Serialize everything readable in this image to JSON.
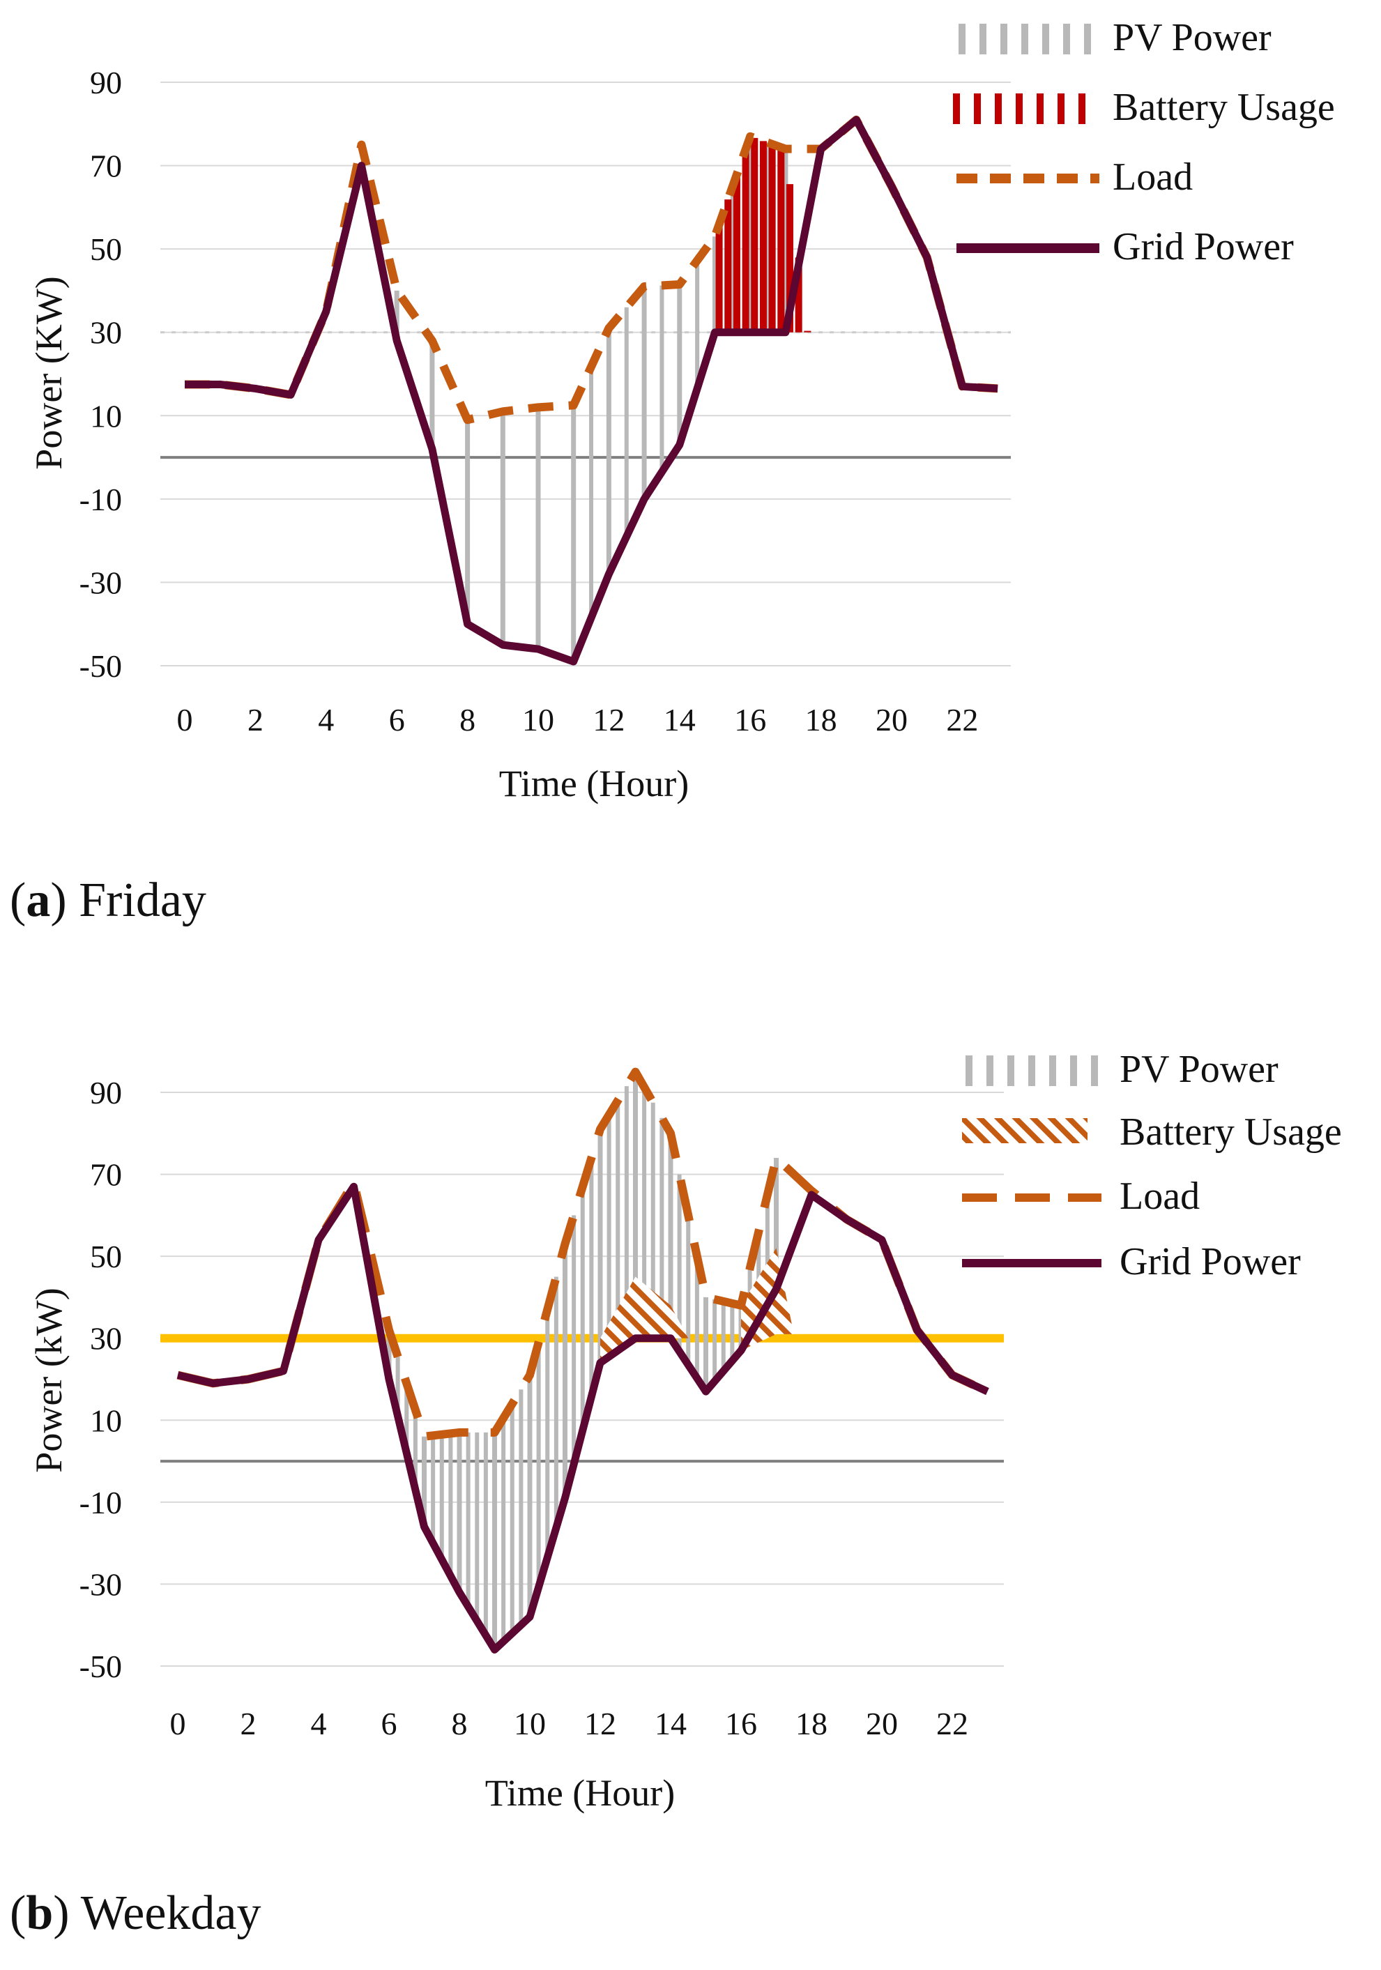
{
  "legend_labels": [
    "PV Power",
    "Battery Usage",
    "Load",
    "Grid Power"
  ],
  "colors": {
    "pv": "#b8b8b8",
    "battery_a": "#c00000",
    "battery_b": "#c55a11",
    "load": "#c55a11",
    "grid": "#5c0632",
    "threshold": "#ffc000",
    "zero": "#808080",
    "gridline": "#d9d9d9"
  },
  "captions": [
    {
      "letter": "a",
      "text": "Friday"
    },
    {
      "letter": "b",
      "text": "Weekday"
    }
  ],
  "chart_data": [
    {
      "type": "line",
      "title": "Friday",
      "xlabel": "Time (Hour)",
      "ylabel": "Power (KW)",
      "x": [
        0,
        1,
        2,
        3,
        4,
        5,
        6,
        7,
        8,
        9,
        10,
        11,
        12,
        13,
        14,
        15,
        16,
        17,
        18,
        19,
        20,
        21,
        22,
        23
      ],
      "xticks": [
        0,
        2,
        4,
        6,
        8,
        10,
        12,
        14,
        16,
        18,
        20,
        22
      ],
      "yticks": [
        -50,
        -30,
        -10,
        10,
        30,
        50,
        70,
        90
      ],
      "ylim": [
        -50,
        100
      ],
      "threshold": 30,
      "threshold_style": "dotted",
      "series": [
        {
          "name": "Load",
          "values": [
            17.5,
            17.5,
            16.5,
            15,
            35,
            75,
            40,
            28,
            9,
            11,
            12,
            12.5,
            31,
            41,
            41.5,
            53,
            77,
            74,
            74,
            81,
            65,
            48,
            17,
            16.5
          ]
        },
        {
          "name": "Grid Power",
          "values": [
            17.5,
            17.5,
            16.5,
            15,
            35,
            70,
            28,
            2,
            -40,
            -45,
            -46,
            -49,
            -28,
            -10,
            3,
            30,
            30,
            30,
            74,
            81,
            65,
            48,
            17,
            16.5
          ]
        }
      ],
      "pv_from": [
        null,
        null,
        null,
        null,
        null,
        null,
        28,
        2,
        -40,
        -45,
        -46,
        -49,
        -28,
        -10,
        3,
        30,
        30,
        30,
        null,
        null,
        null,
        null,
        null,
        null
      ],
      "pv_to": [
        null,
        null,
        null,
        null,
        null,
        null,
        40,
        28,
        9,
        11,
        12,
        12.5,
        31,
        41,
        41.5,
        53,
        77,
        74,
        null,
        null,
        null,
        null,
        null,
        null
      ],
      "battery_from": [
        null,
        null,
        null,
        null,
        null,
        null,
        null,
        null,
        null,
        null,
        null,
        null,
        null,
        null,
        null,
        30,
        30,
        30,
        null,
        null,
        null,
        null,
        null,
        null
      ],
      "battery_to": [
        null,
        null,
        null,
        null,
        null,
        null,
        null,
        null,
        null,
        null,
        null,
        null,
        null,
        null,
        null,
        53,
        77,
        74,
        null,
        null,
        null,
        null,
        null,
        null
      ],
      "battery_style": "bars"
    },
    {
      "type": "line",
      "title": "Weekday",
      "xlabel": "Time (Hour)",
      "ylabel": "Power (kW)",
      "x": [
        0,
        1,
        2,
        3,
        4,
        5,
        6,
        7,
        8,
        9,
        10,
        11,
        12,
        13,
        14,
        15,
        16,
        17,
        18,
        19,
        20,
        21,
        22,
        23
      ],
      "xticks": [
        0,
        2,
        4,
        6,
        8,
        10,
        12,
        14,
        16,
        18,
        20,
        22
      ],
      "yticks": [
        -50,
        -30,
        -10,
        10,
        30,
        50,
        70,
        90
      ],
      "ylim": [
        -50,
        100
      ],
      "threshold": 30,
      "threshold_style": "solid",
      "series": [
        {
          "name": "Load",
          "values": [
            21,
            19,
            20,
            22,
            54,
            68,
            32,
            6,
            7,
            7,
            21,
            53,
            81,
            95,
            80,
            40,
            38,
            74,
            66,
            59,
            54,
            32,
            21,
            17
          ]
        },
        {
          "name": "Grid Power",
          "values": [
            21,
            19,
            20,
            22,
            54,
            67,
            20,
            -16,
            -32,
            -46,
            -38,
            -9,
            24,
            30,
            30,
            17,
            27,
            42,
            65,
            59,
            54,
            32,
            21,
            17
          ]
        }
      ],
      "pv_from": [
        null,
        null,
        null,
        null,
        null,
        null,
        20,
        -16,
        -32,
        -46,
        -38,
        -9,
        24,
        30,
        30,
        17,
        27,
        42,
        null,
        null,
        null,
        null,
        null,
        null
      ],
      "pv_to": [
        null,
        null,
        null,
        null,
        null,
        null,
        32,
        6,
        7,
        7,
        21,
        53,
        81,
        95,
        80,
        40,
        38,
        74,
        null,
        null,
        null,
        null,
        null,
        null
      ],
      "battery_from": [
        null,
        null,
        null,
        null,
        null,
        null,
        null,
        null,
        null,
        null,
        null,
        null,
        24,
        30,
        30,
        null,
        27,
        31,
        null,
        null,
        null,
        null,
        null,
        null
      ],
      "battery_to": [
        null,
        null,
        null,
        null,
        null,
        null,
        null,
        null,
        null,
        null,
        null,
        null,
        30,
        45,
        38,
        null,
        38,
        52,
        null,
        null,
        null,
        null,
        null,
        null
      ],
      "battery_style": "hatch"
    }
  ]
}
